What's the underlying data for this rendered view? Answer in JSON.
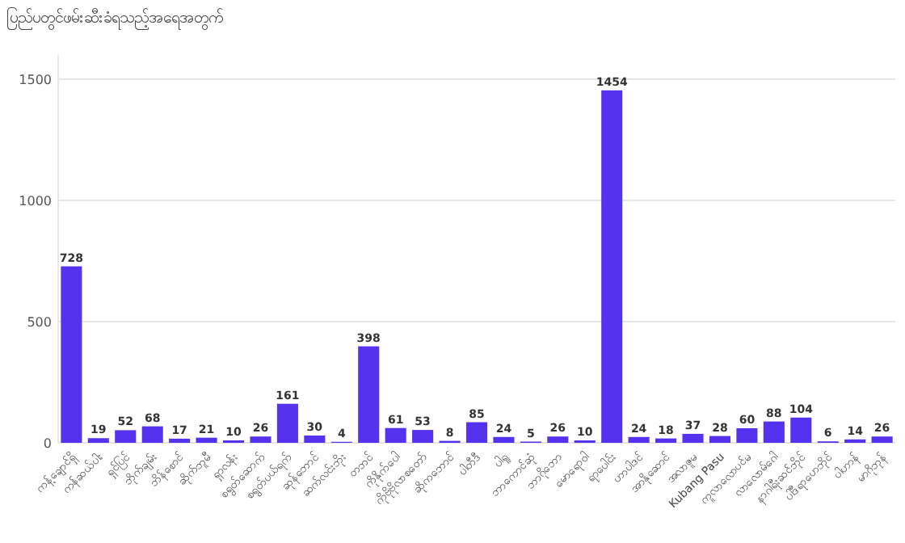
{
  "chart_data": {
    "type": "bar",
    "title": "ပြည်ပတွင်ဖမ်းဆီးခံရသည့်အရေအတွက်",
    "categories": [
      "ကန့်ချောင်ရှိ",
      "ကန်ဆယ်ပါး",
      "ရှင်ပြင်",
      "ဘိုက်ချမ်း",
      "ဘိန်စောင်",
      "ဆိုက်ဘူမီ",
      "ရှာလန်း",
      "စရွတ်ဆောက်",
      "စရွတ်ပယ်ရက်",
      "ဆုန်ဘောင်",
      "ဆက်လင်းဘိုး",
      "တဘင်",
      "ကိုနိုက်ပေါ",
      "ကိုဗိုဗိုလာစတော်",
      "ဆိုကဘောင်",
      "ပါတီဒီ",
      "ပါရူ",
      "ဘာကောင်ဆုံ",
      "ဘာဂိုဘော",
      "မောရောဝါ",
      "ရာပေါင်း",
      "ဟာပါဒင်",
      "အာနိုဆောင်",
      "အလာဇူမ",
      "Kubang Pasu",
      "ကူလာလောပင်မ",
      "လာလောမ်ဂေါ",
      "နာဂါရီးဆင်ဘိုင်",
      "ပါဒီရာဟေဘိုင်",
      "ပါဟာန်",
      "မာဂိုဘုန်"
    ],
    "values": [
      728,
      19,
      52,
      68,
      17,
      21,
      10,
      26,
      161,
      30,
      4,
      398,
      61,
      53,
      8,
      85,
      24,
      5,
      26,
      10,
      1454,
      24,
      18,
      37,
      28,
      60,
      88,
      104,
      6,
      14,
      26
    ],
    "color": "#5533ee",
    "ylim": [
      0,
      1600
    ],
    "yticks": [
      0,
      500,
      1000,
      1500
    ],
    "grid": "y",
    "data_labels": true
  }
}
